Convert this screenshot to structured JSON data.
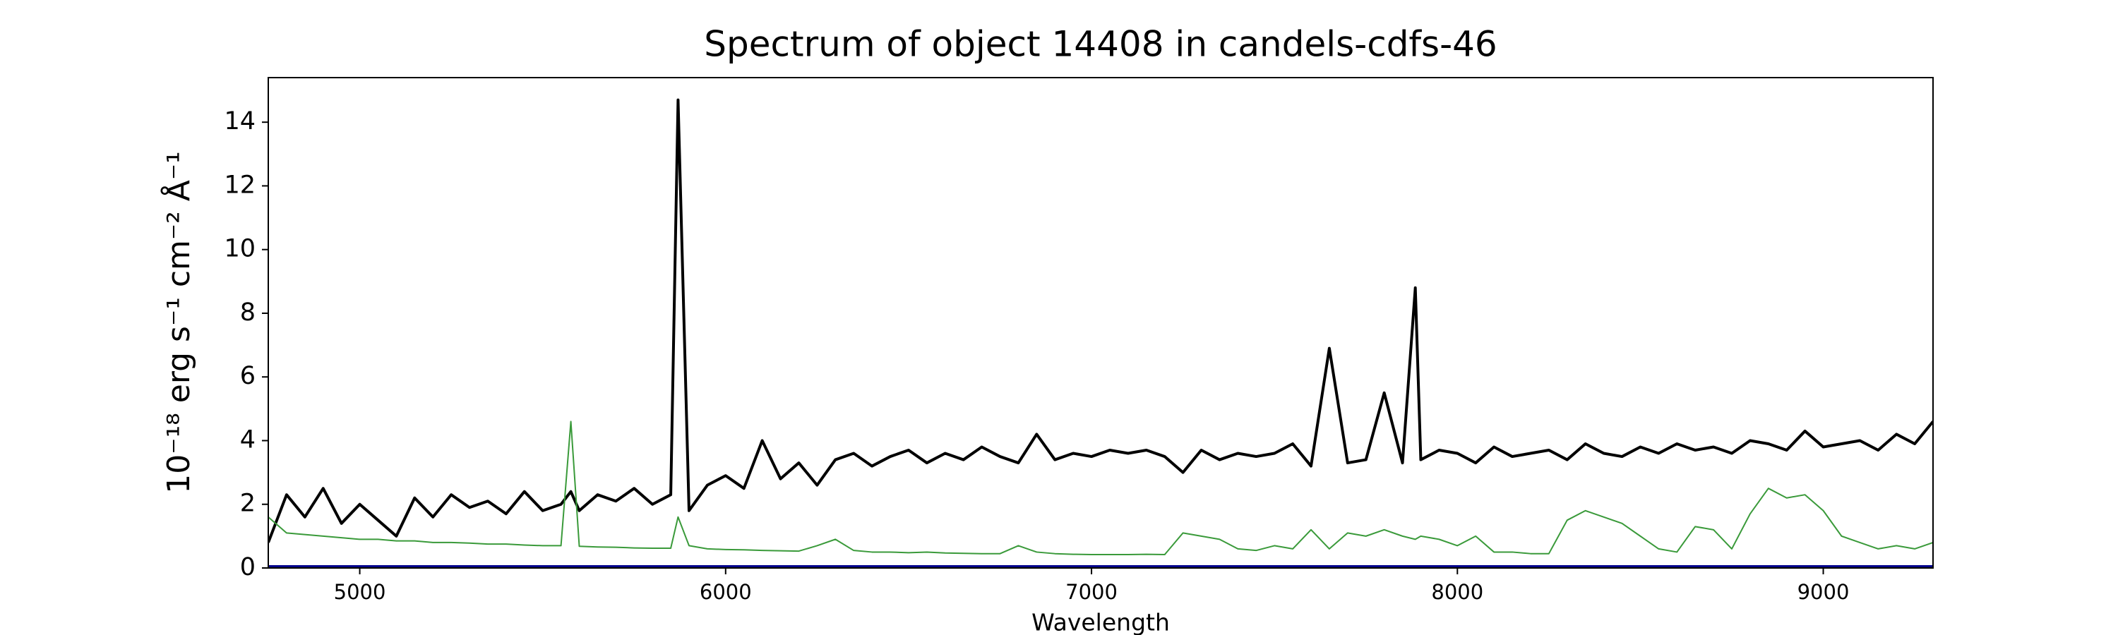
{
  "chart_data": {
    "type": "line",
    "title": "Spectrum of object 14408 in candels-cdfs-46",
    "xlabel": "Wavelength",
    "ylabel": "10⁻¹⁸ erg s⁻¹ cm⁻² Å⁻¹",
    "x": [
      4750,
      4800,
      4850,
      4900,
      4950,
      5000,
      5050,
      5100,
      5150,
      5200,
      5250,
      5300,
      5350,
      5400,
      5450,
      5500,
      5550,
      5577,
      5600,
      5650,
      5700,
      5750,
      5800,
      5850,
      5870,
      5900,
      5950,
      6000,
      6050,
      6100,
      6150,
      6200,
      6250,
      6300,
      6350,
      6400,
      6450,
      6500,
      6550,
      6600,
      6650,
      6700,
      6750,
      6800,
      6850,
      6900,
      6950,
      7000,
      7050,
      7100,
      7150,
      7200,
      7250,
      7300,
      7350,
      7400,
      7450,
      7500,
      7550,
      7600,
      7650,
      7700,
      7750,
      7800,
      7850,
      7885,
      7900,
      7950,
      8000,
      8050,
      8100,
      8150,
      8200,
      8250,
      8300,
      8350,
      8400,
      8450,
      8500,
      8550,
      8600,
      8650,
      8700,
      8750,
      8800,
      8850,
      8900,
      8950,
      9000,
      9050,
      9100,
      9150,
      9200,
      9250,
      9300
    ],
    "series": [
      {
        "color": "#000000",
        "width": 4,
        "values": [
          0.8,
          2.3,
          1.6,
          2.5,
          1.4,
          2.0,
          1.5,
          1.0,
          2.2,
          1.6,
          2.3,
          1.9,
          2.1,
          1.7,
          2.4,
          1.8,
          2.0,
          2.4,
          1.8,
          2.3,
          2.1,
          2.5,
          2.0,
          2.3,
          14.7,
          1.8,
          2.6,
          2.9,
          2.5,
          4.0,
          2.8,
          3.3,
          2.6,
          3.4,
          3.6,
          3.2,
          3.5,
          3.7,
          3.3,
          3.6,
          3.4,
          3.8,
          3.5,
          3.3,
          4.2,
          3.4,
          3.6,
          3.5,
          3.7,
          3.6,
          3.7,
          3.5,
          3.0,
          3.7,
          3.4,
          3.6,
          3.5,
          3.6,
          3.9,
          3.2,
          6.9,
          3.3,
          3.4,
          5.5,
          3.3,
          8.8,
          3.4,
          3.7,
          3.6,
          3.3,
          3.8,
          3.5,
          3.6,
          3.7,
          3.4,
          3.9,
          3.6,
          3.5,
          3.8,
          3.6,
          3.9,
          3.7,
          3.8,
          3.6,
          4.0,
          3.9,
          3.7,
          4.3,
          3.8,
          3.9,
          4.0,
          3.7,
          4.2,
          3.9,
          4.6
        ]
      },
      {
        "color": "#3a9a3a",
        "width": 2,
        "values": [
          1.6,
          1.1,
          1.05,
          1.0,
          0.95,
          0.9,
          0.9,
          0.85,
          0.85,
          0.8,
          0.8,
          0.78,
          0.75,
          0.75,
          0.72,
          0.7,
          0.7,
          4.6,
          0.68,
          0.66,
          0.65,
          0.63,
          0.62,
          0.62,
          1.6,
          0.7,
          0.6,
          0.58,
          0.57,
          0.55,
          0.54,
          0.53,
          0.7,
          0.9,
          0.55,
          0.5,
          0.5,
          0.48,
          0.5,
          0.47,
          0.46,
          0.45,
          0.45,
          0.7,
          0.5,
          0.45,
          0.43,
          0.42,
          0.42,
          0.42,
          0.43,
          0.42,
          1.1,
          1.0,
          0.9,
          0.6,
          0.55,
          0.7,
          0.6,
          1.2,
          0.6,
          1.1,
          1.0,
          1.2,
          1.0,
          0.9,
          1.0,
          0.9,
          0.7,
          1.0,
          0.5,
          0.5,
          0.45,
          0.45,
          1.5,
          1.8,
          1.6,
          1.4,
          1.0,
          0.6,
          0.5,
          1.3,
          1.2,
          0.6,
          1.7,
          2.5,
          2.2,
          2.3,
          1.8,
          1.0,
          0.8,
          0.6,
          0.7,
          0.6,
          0.8
        ]
      },
      {
        "color": "#00008b",
        "width": 8,
        "x": [
          4750,
          9300
        ],
        "values": [
          0,
          0
        ]
      }
    ],
    "xlim": [
      4750,
      9300
    ],
    "ylim": [
      0,
      15.4
    ],
    "xticks": [
      5000,
      6000,
      7000,
      8000,
      9000
    ],
    "yticks": [
      0,
      2,
      4,
      6,
      8,
      10,
      12,
      14
    ]
  }
}
